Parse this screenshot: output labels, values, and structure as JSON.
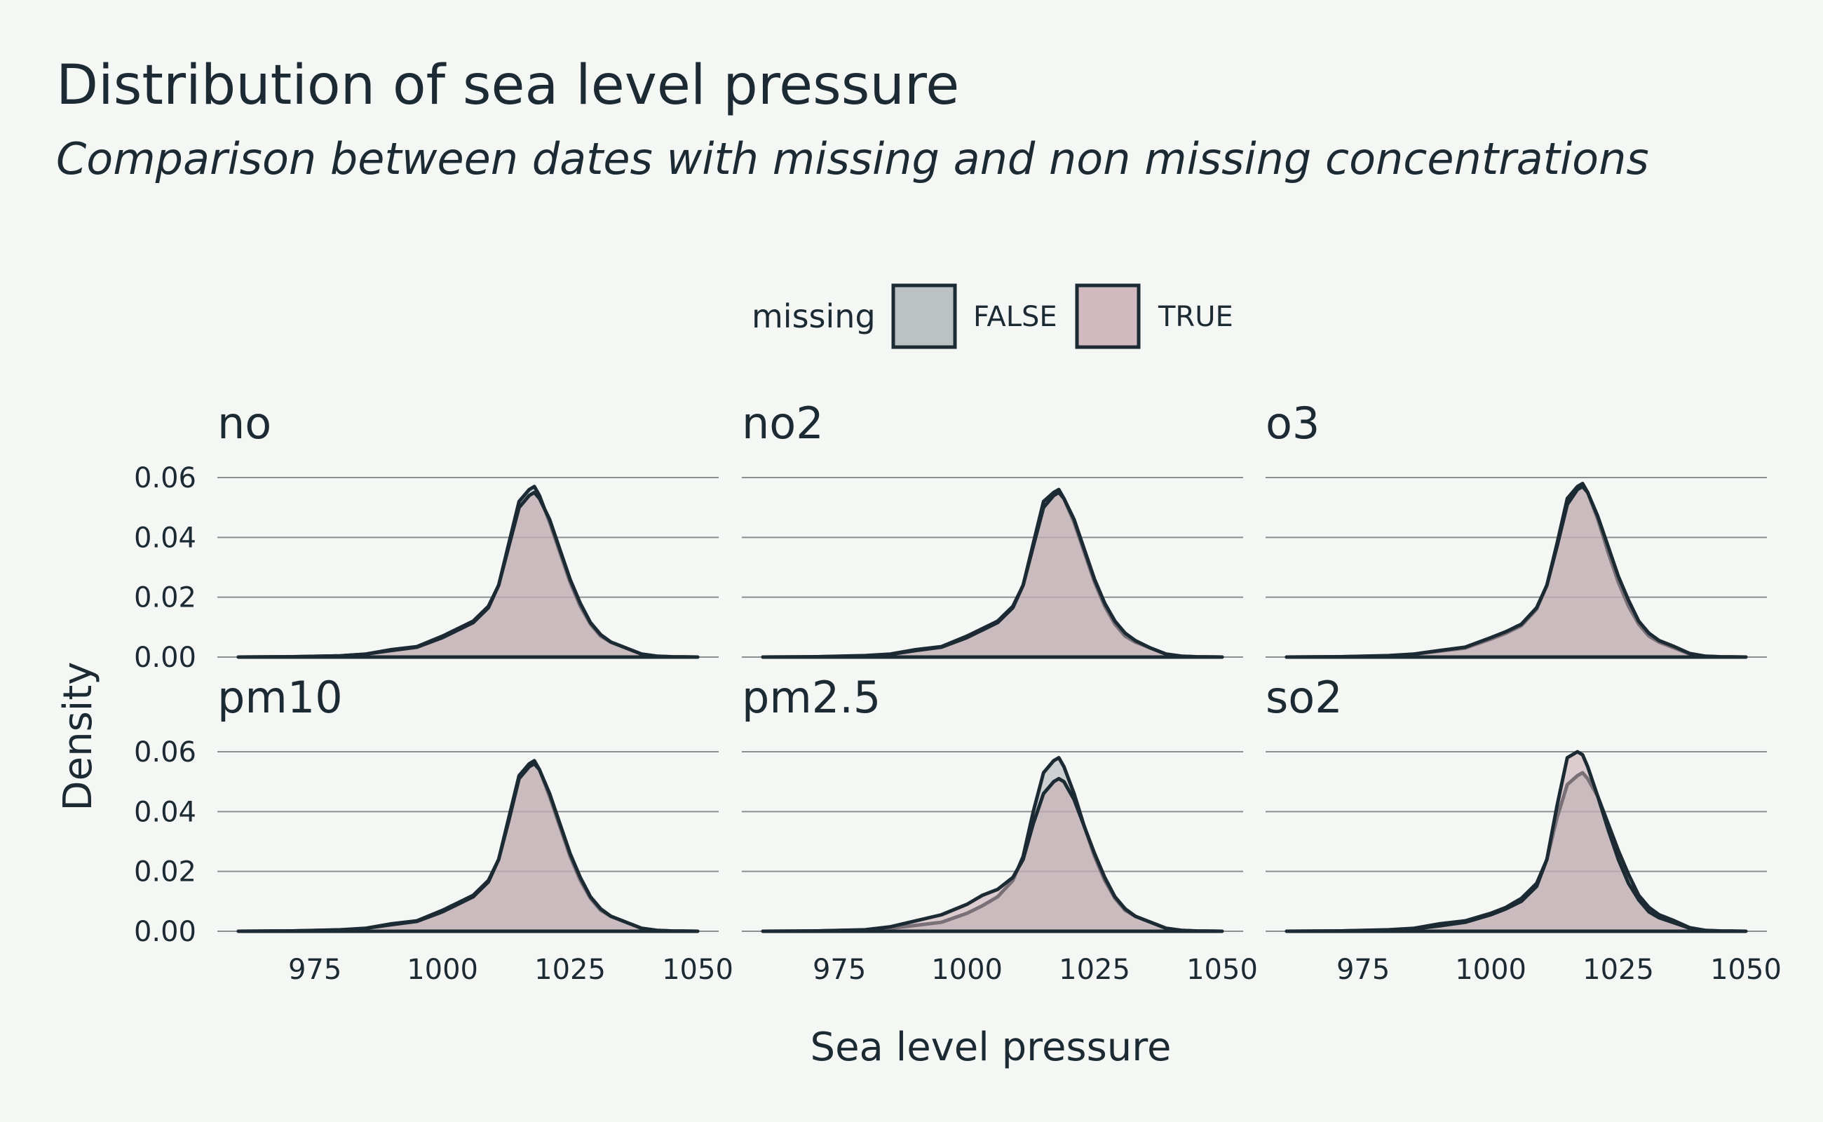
{
  "title": "Distribution of sea level pressure",
  "subtitle": "Comparison between dates with missing and non missing concentrations",
  "legend": {
    "title": "missing",
    "items": [
      {
        "label": "FALSE",
        "fill": "#bcc2c3"
      },
      {
        "label": "TRUE",
        "fill": "#d2b9bf"
      }
    ]
  },
  "colors": {
    "background": "#f5f7f4",
    "outline": "#1b2a33",
    "false_fill": "#a9b1b4",
    "true_fill": "#c9a9b1",
    "overlap_fill": "#a18f96"
  },
  "chart_data": {
    "type": "area",
    "subtype": "density-facets",
    "xlabel": "Sea level pressure",
    "ylabel": "Density",
    "xlim": [
      960,
      1050
    ],
    "ylim": [
      0,
      0.06
    ],
    "xticks": [
      975,
      1000,
      1025,
      1050
    ],
    "yticks": [
      0.0,
      0.02,
      0.04,
      0.06
    ],
    "ytick_labels": [
      "0.00",
      "0.02",
      "0.04",
      "0.06"
    ],
    "grid": "horizontal",
    "legend_position": "top",
    "x": [
      960,
      970,
      980,
      985,
      990,
      995,
      1000,
      1003,
      1006,
      1009,
      1011,
      1013,
      1015,
      1017,
      1018,
      1019,
      1021,
      1023,
      1025,
      1027,
      1029,
      1031,
      1033,
      1036,
      1039,
      1042,
      1045,
      1050
    ],
    "panels": [
      {
        "label": "no",
        "series": [
          {
            "name": "FALSE",
            "values": [
              0,
              0.0001,
              0.0004,
              0.001,
              0.0025,
              0.0035,
              0.007,
              0.0095,
              0.012,
              0.017,
              0.024,
              0.038,
              0.052,
              0.056,
              0.057,
              0.054,
              0.045,
              0.035,
              0.025,
              0.017,
              0.011,
              0.007,
              0.005,
              0.003,
              0.001,
              0.0003,
              0.0001,
              0
            ]
          },
          {
            "name": "TRUE",
            "values": [
              0,
              0.0001,
              0.0004,
              0.001,
              0.0022,
              0.0033,
              0.0065,
              0.009,
              0.0115,
              0.0165,
              0.024,
              0.037,
              0.05,
              0.054,
              0.055,
              0.053,
              0.046,
              0.036,
              0.026,
              0.018,
              0.0115,
              0.0075,
              0.005,
              0.003,
              0.001,
              0.0003,
              0.0001,
              0
            ]
          }
        ]
      },
      {
        "label": "no2",
        "series": [
          {
            "name": "FALSE",
            "values": [
              0,
              0.0001,
              0.0005,
              0.001,
              0.0025,
              0.0035,
              0.007,
              0.0095,
              0.012,
              0.017,
              0.024,
              0.038,
              0.052,
              0.055,
              0.056,
              0.053,
              0.045,
              0.035,
              0.025,
              0.017,
              0.011,
              0.007,
              0.005,
              0.003,
              0.001,
              0.0003,
              0.0001,
              0
            ]
          },
          {
            "name": "TRUE",
            "values": [
              0,
              0.0001,
              0.0004,
              0.0009,
              0.0022,
              0.0033,
              0.0065,
              0.009,
              0.0115,
              0.0165,
              0.024,
              0.037,
              0.05,
              0.054,
              0.055,
              0.053,
              0.046,
              0.036,
              0.026,
              0.018,
              0.012,
              0.008,
              0.0055,
              0.003,
              0.001,
              0.0003,
              0.0001,
              0
            ]
          }
        ]
      },
      {
        "label": "o3",
        "series": [
          {
            "name": "FALSE",
            "values": [
              0,
              0.0001,
              0.0005,
              0.001,
              0.002,
              0.003,
              0.006,
              0.008,
              0.0105,
              0.016,
              0.024,
              0.038,
              0.053,
              0.057,
              0.058,
              0.055,
              0.046,
              0.035,
              0.025,
              0.017,
              0.011,
              0.007,
              0.005,
              0.003,
              0.001,
              0.0003,
              0.0001,
              0
            ]
          },
          {
            "name": "TRUE",
            "values": [
              0,
              0.0001,
              0.0004,
              0.001,
              0.0022,
              0.0033,
              0.0065,
              0.0085,
              0.011,
              0.0165,
              0.024,
              0.037,
              0.051,
              0.056,
              0.057,
              0.055,
              0.047,
              0.037,
              0.027,
              0.019,
              0.012,
              0.008,
              0.0055,
              0.0035,
              0.0012,
              0.0003,
              0.0001,
              0
            ]
          }
        ]
      },
      {
        "label": "pm10",
        "series": [
          {
            "name": "FALSE",
            "values": [
              0,
              0.0001,
              0.0005,
              0.001,
              0.0025,
              0.0035,
              0.007,
              0.0095,
              0.012,
              0.017,
              0.024,
              0.038,
              0.052,
              0.056,
              0.057,
              0.054,
              0.045,
              0.035,
              0.025,
              0.017,
              0.011,
              0.007,
              0.005,
              0.003,
              0.001,
              0.0003,
              0.0001,
              0
            ]
          },
          {
            "name": "TRUE",
            "values": [
              0,
              0.0001,
              0.0004,
              0.001,
              0.0022,
              0.0033,
              0.0065,
              0.009,
              0.0115,
              0.0165,
              0.024,
              0.037,
              0.051,
              0.055,
              0.056,
              0.054,
              0.046,
              0.036,
              0.026,
              0.018,
              0.0115,
              0.0075,
              0.005,
              0.003,
              0.001,
              0.0003,
              0.0001,
              0
            ]
          }
        ]
      },
      {
        "label": "pm2.5",
        "series": [
          {
            "name": "FALSE",
            "values": [
              0,
              0.0001,
              0.0004,
              0.001,
              0.002,
              0.003,
              0.006,
              0.0085,
              0.0115,
              0.017,
              0.025,
              0.04,
              0.053,
              0.057,
              0.058,
              0.055,
              0.046,
              0.035,
              0.025,
              0.017,
              0.011,
              0.007,
              0.005,
              0.003,
              0.001,
              0.0003,
              0.0001,
              0
            ]
          },
          {
            "name": "TRUE",
            "values": [
              0,
              0.0001,
              0.0005,
              0.0015,
              0.0035,
              0.0055,
              0.009,
              0.012,
              0.014,
              0.018,
              0.024,
              0.036,
              0.046,
              0.05,
              0.051,
              0.05,
              0.044,
              0.035,
              0.026,
              0.018,
              0.0115,
              0.0075,
              0.005,
              0.003,
              0.001,
              0.0003,
              0.0001,
              0
            ]
          }
        ]
      },
      {
        "label": "so2",
        "series": [
          {
            "name": "FALSE",
            "values": [
              0,
              0.0001,
              0.0005,
              0.001,
              0.0025,
              0.0035,
              0.006,
              0.008,
              0.011,
              0.016,
              0.024,
              0.038,
              0.049,
              0.052,
              0.053,
              0.051,
              0.045,
              0.036,
              0.027,
              0.019,
              0.012,
              0.008,
              0.0055,
              0.0035,
              0.0012,
              0.0003,
              0.0001,
              0
            ]
          },
          {
            "name": "TRUE",
            "values": [
              0,
              0.0001,
              0.0004,
              0.0008,
              0.0018,
              0.003,
              0.0055,
              0.0075,
              0.01,
              0.015,
              0.024,
              0.042,
              0.058,
              0.06,
              0.059,
              0.055,
              0.045,
              0.034,
              0.024,
              0.016,
              0.0105,
              0.0065,
              0.0045,
              0.0028,
              0.001,
              0.0003,
              0.0001,
              0
            ]
          }
        ]
      }
    ]
  }
}
